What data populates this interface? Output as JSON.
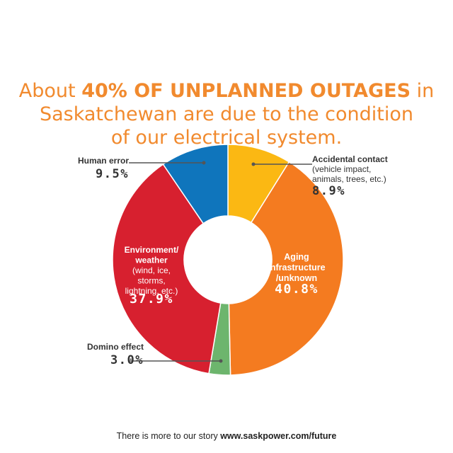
{
  "title": {
    "line1_pre": "About ",
    "line1_bold": "40% OF UNPLANNED OUTAGES",
    "line1_post": " in",
    "line2": "Saskatchewan are due to the condition",
    "line3": "of our electrical system."
  },
  "footer": {
    "text": "There is more to our story ",
    "url": "www.saskpower.com/future"
  },
  "colors": {
    "title": "#f18a2e",
    "accidental": "#fbb813",
    "aging": "#f47b20",
    "domino": "#6db56d",
    "environment": "#d7202f",
    "human": "#0f75bc"
  },
  "chart_data": {
    "type": "pie",
    "donut": true,
    "slices": [
      {
        "key": "accidental",
        "value": 8.9,
        "value_label": "8.9%",
        "label_lines": [
          "Accidental contact",
          "(vehicle impact,",
          "animals, trees, etc.)"
        ]
      },
      {
        "key": "aging",
        "value": 40.8,
        "value_label": "40.8%",
        "label_lines": [
          "Aging",
          "infrastructure",
          "/unknown"
        ]
      },
      {
        "key": "domino",
        "value": 3.0,
        "value_label": "3.0%",
        "label_lines": [
          "Domino effect"
        ]
      },
      {
        "key": "environment",
        "value": 37.9,
        "value_label": "37.9%",
        "label_lines": [
          "Environment/",
          "weather",
          "(wind, ice,",
          "storms,",
          "lightning, etc.)"
        ]
      },
      {
        "key": "human",
        "value": 9.5,
        "value_label": "9.5%",
        "label_lines": [
          "Human error"
        ]
      }
    ]
  }
}
